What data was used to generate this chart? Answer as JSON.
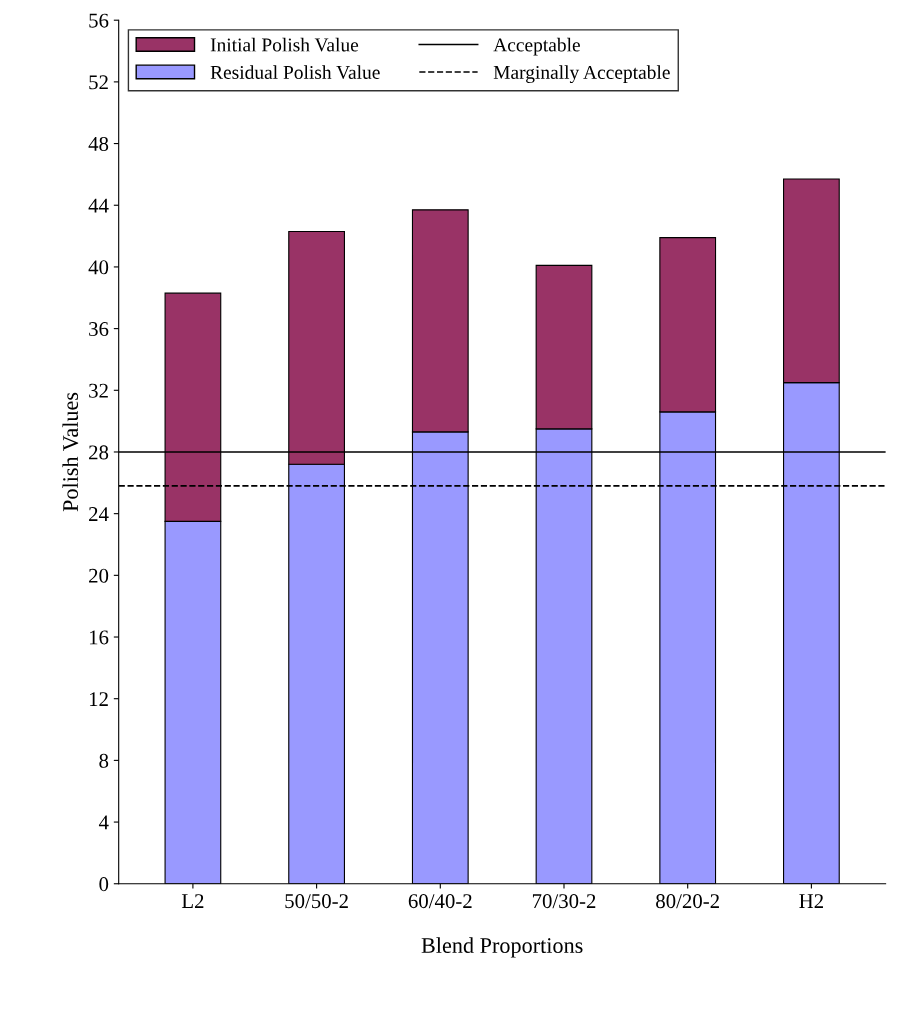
{
  "chart_data": {
    "type": "bar",
    "stacked": true,
    "xlabel": "Blend Proportions",
    "ylabel": "Polish Values",
    "categories": [
      "L2",
      "50/50-2",
      "60/40-2",
      "70/30-2",
      "80/20-2",
      "H2"
    ],
    "series": [
      {
        "name": "Residual Polish Value",
        "color": "#9999ff",
        "values": [
          23.5,
          27.2,
          29.3,
          29.5,
          30.6,
          32.5
        ]
      },
      {
        "name": "Initial Polish Value",
        "color": "#993366",
        "values": [
          14.8,
          15.1,
          14.4,
          10.6,
          11.3,
          13.2
        ]
      }
    ],
    "ylim": [
      0,
      56
    ],
    "yticks": [
      0,
      4,
      8,
      12,
      16,
      20,
      24,
      28,
      32,
      36,
      40,
      44,
      48,
      52,
      56
    ],
    "ref_lines": [
      {
        "axis": "y",
        "value": 28,
        "label": "Acceptable",
        "color": "#000000",
        "line_style": "solid"
      },
      {
        "axis": "y",
        "value": 25.8,
        "label": "Marginally Acceptable",
        "color": "#000000",
        "line_style": "dashed"
      }
    ],
    "legend": "top left",
    "grid": false
  }
}
